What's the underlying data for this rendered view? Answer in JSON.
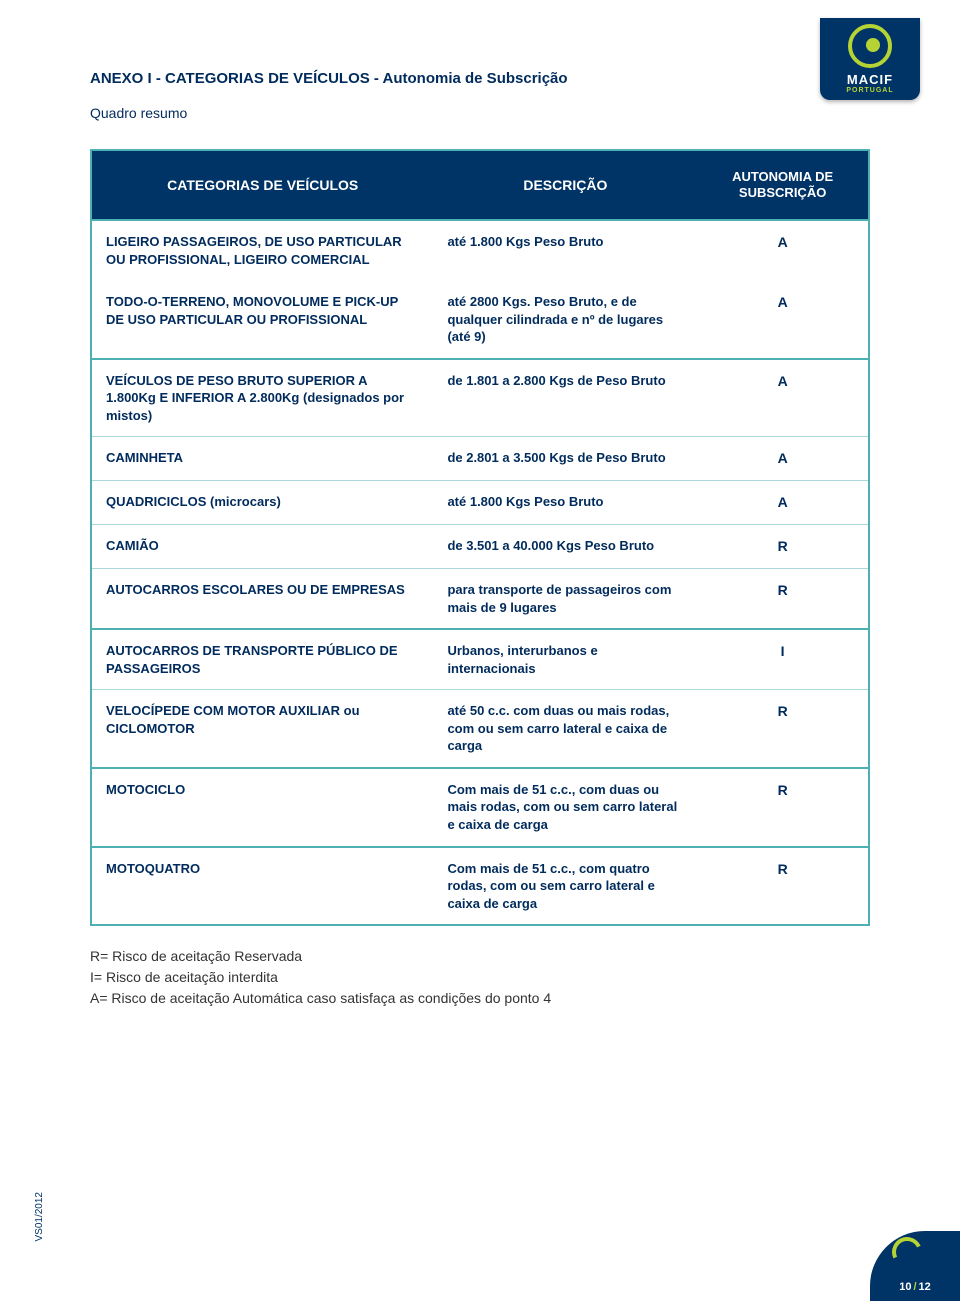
{
  "logo": {
    "brand": "MACIF",
    "sub": "PORTUGAL"
  },
  "title": "ANEXO I - CATEGORIAS DE VEÍCULOS - Autonomia de Subscrição",
  "subtitle": "Quadro resumo",
  "headers": {
    "col1": "CATEGORIAS DE VEÍCULOS",
    "col2": "DESCRIÇÃO",
    "col3": "AUTONOMIA DE SUBSCRIÇÃO"
  },
  "rows": [
    {
      "cat": "LIGEIRO PASSAGEIROS, DE USO PARTICULAR OU PROFISSIONAL,  LIGEIRO COMERCIAL",
      "desc": "até 1.800 Kgs Peso Bruto",
      "aut": "A",
      "sep": "group"
    },
    {
      "cat": "TODO-O-TERRENO, MONOVOLUME E PICK-UP DE USO PARTICULAR OU PROFISSIONAL",
      "desc": "até 2800 Kgs. Peso Bruto, e de qualquer cilindrada e nº de lugares (até 9)",
      "aut": "A",
      "sep": "none"
    },
    {
      "cat": "VEÍCULOS DE PESO BRUTO SUPERIOR A 1.800Kg E INFERIOR A 2.800Kg (designados por mistos)",
      "desc": "de 1.801 a  2.800 Kgs de Peso Bruto",
      "aut": "A",
      "sep": "group"
    },
    {
      "cat": "CAMINHETA",
      "desc": "de 2.801 a 3.500 Kgs de Peso Bruto",
      "aut": "A",
      "sep": "row"
    },
    {
      "cat": "QUADRICICLOS (microcars)",
      "desc": "até 1.800 Kgs Peso Bruto",
      "aut": "A",
      "sep": "row"
    },
    {
      "cat": "CAMIÃO",
      "desc": "de 3.501 a 40.000 Kgs Peso Bruto",
      "aut": "R",
      "sep": "row"
    },
    {
      "cat": "AUTOCARROS ESCOLARES OU DE EMPRESAS",
      "desc": "para transporte de passageiros com mais de 9 lugares",
      "aut": "R",
      "sep": "row"
    },
    {
      "cat": "AUTOCARROS DE TRANSPORTE PÚBLICO DE PASSAGEIROS",
      "desc": "Urbanos, interurbanos e internacionais",
      "aut": "I",
      "sep": "group"
    },
    {
      "cat": "VELOCÍPEDE COM MOTOR AUXILIAR ou CICLOMOTOR",
      "desc": "até 50 c.c. com duas ou mais rodas, com ou sem carro lateral e caixa de carga",
      "aut": "R",
      "sep": "row"
    },
    {
      "cat": "MOTOCICLO",
      "desc": "Com mais de 51 c.c., com duas ou mais rodas, com ou sem carro lateral  e caixa de carga",
      "aut": "R",
      "sep": "group"
    },
    {
      "cat": "MOTOQUATRO",
      "desc": "Com mais de 51 c.c., com quatro rodas, com ou sem carro lateral e caixa de carga",
      "aut": "R",
      "sep": "group"
    }
  ],
  "legend": {
    "r": "R= Risco de aceitação Reservada",
    "i": "I= Risco de aceitação interdita",
    "a": "A= Risco de aceitação Automática caso satisfaça as condições do ponto 4"
  },
  "side_label": "VS01/2012",
  "page_num": {
    "current": "10",
    "total": "12"
  },
  "colors": {
    "header_bg": "#003366",
    "border": "#4fb0b4",
    "row_sep": "#a8d8da",
    "text": "#002b5c",
    "accent": "#b5d334"
  }
}
